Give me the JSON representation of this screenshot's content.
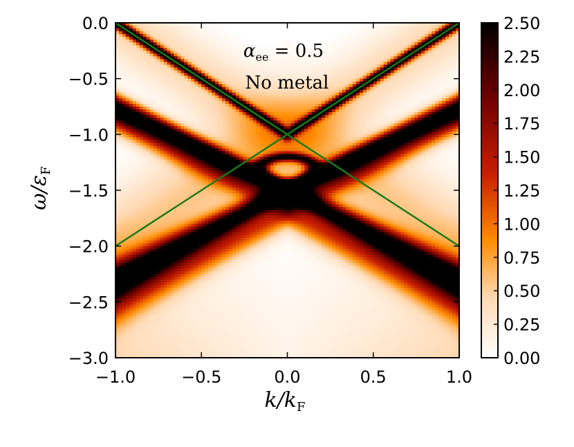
{
  "chart_data": {
    "type": "heatmap",
    "title": "",
    "xlabel": "k/kF",
    "ylabel": "ω/εF",
    "xlim": [
      -1.0,
      1.0
    ],
    "ylim": [
      -3.0,
      0.0
    ],
    "x_ticks": [
      "−1.0",
      "−0.5",
      "0.0",
      "0.5",
      "1.0"
    ],
    "x_tick_values": [
      -1.0,
      -0.5,
      0.0,
      0.5,
      1.0
    ],
    "y_ticks": [
      "0.0",
      "−0.5",
      "−1.0",
      "−1.5",
      "−2.0",
      "−2.5",
      "−3.0"
    ],
    "y_tick_values": [
      0.0,
      -0.5,
      -1.0,
      -1.5,
      -2.0,
      -2.5,
      -3.0
    ],
    "colorbar": {
      "min": 0.0,
      "max": 2.5,
      "ticks": [
        "2.50",
        "2.25",
        "2.00",
        "1.75",
        "1.50",
        "1.25",
        "1.00",
        "0.75",
        "0.50",
        "0.25",
        "0.00"
      ],
      "tick_values": [
        2.5,
        2.25,
        2.0,
        1.75,
        1.5,
        1.25,
        1.0,
        0.75,
        0.5,
        0.25,
        0.0
      ],
      "colormap": [
        "#ffffff",
        "#ffd9b3",
        "#ff8c00",
        "#c81e00",
        "#6e0000",
        "#000000"
      ]
    },
    "annotations": {
      "line1": "α_ee = 0.5",
      "line2": "No metal"
    },
    "overlay_lines": {
      "color": "#1a7a1a",
      "lines": [
        {
          "name": "",
          "x": [
            -1.0,
            1.0
          ],
          "y": [
            0.0,
            -2.0
          ]
        },
        {
          "name": "",
          "x": [
            -1.0,
            1.0
          ],
          "y": [
            -2.0,
            0.0
          ]
        }
      ]
    },
    "grid": false,
    "legend": "none"
  }
}
